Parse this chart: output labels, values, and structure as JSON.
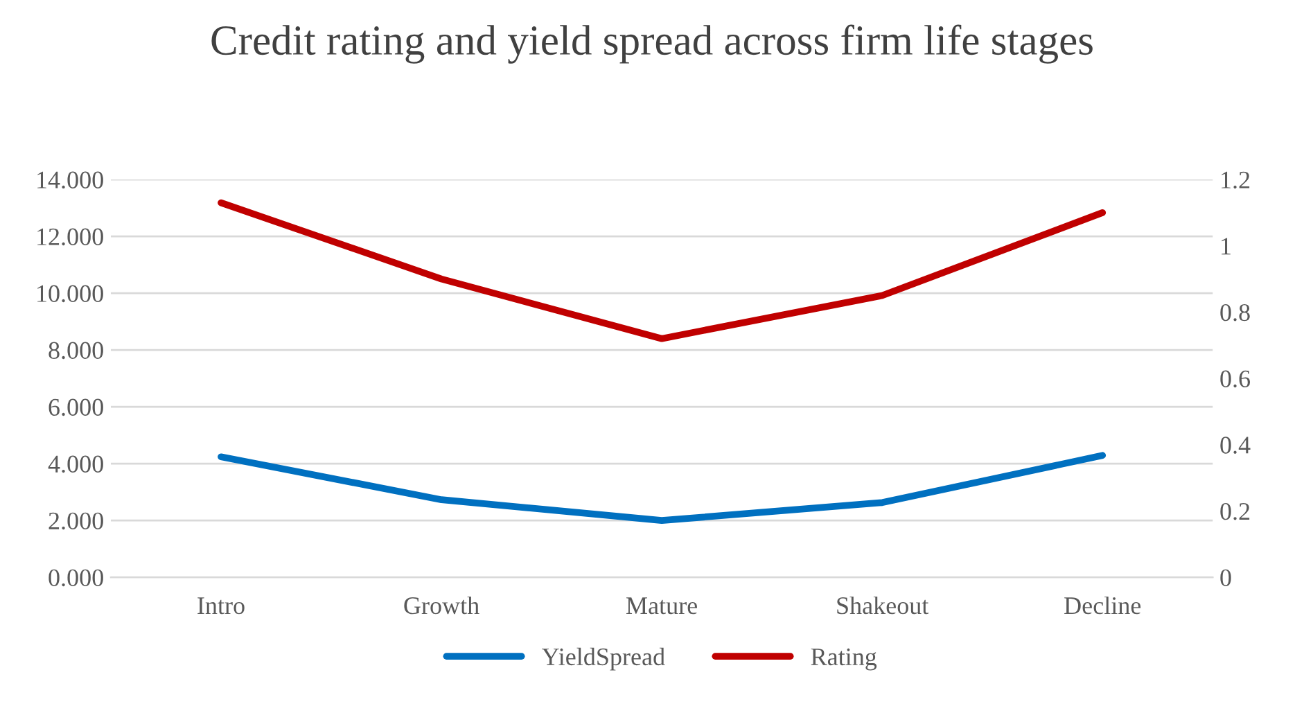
{
  "chart_data": {
    "type": "line",
    "title": "Credit rating and yield spread across firm life stages",
    "categories": [
      "Intro",
      "Growth",
      "Mature",
      "Shakeout",
      "Decline"
    ],
    "series": [
      {
        "name": "YieldSpread",
        "color": "#0070c0",
        "values": [
          4.24,
          2.73,
          2.0,
          2.63,
          4.29
        ]
      },
      {
        "name": "Rating",
        "color": "#c00000",
        "values": [
          1.13,
          0.9,
          0.72,
          0.85,
          1.1
        ],
        "axis": "y2"
      }
    ],
    "ylim": [
      0,
      14
    ],
    "yticks": [
      {
        "value": 0,
        "label": "0.000"
      },
      {
        "value": 2,
        "label": "2.000"
      },
      {
        "value": 4,
        "label": "4.000"
      },
      {
        "value": 6,
        "label": "6.000"
      },
      {
        "value": 8,
        "label": "8.000"
      },
      {
        "value": 10,
        "label": "10.000"
      },
      {
        "value": 12,
        "label": "12.000"
      },
      {
        "value": 14,
        "label": "14.000"
      }
    ],
    "y2lim": [
      0,
      1.2
    ],
    "y2ticks": [
      0,
      0.2,
      0.4,
      0.6,
      0.8,
      1,
      1.2
    ],
    "grid": "y",
    "legend": "bottom",
    "marker": "none",
    "line_style": "solid"
  }
}
